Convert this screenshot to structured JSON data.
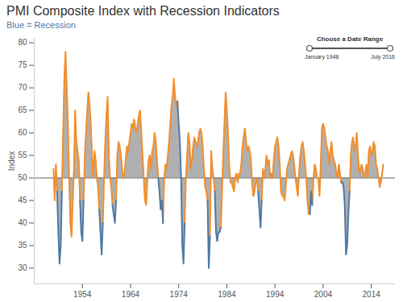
{
  "chart_data": {
    "type": "line",
    "title": "PMI Composite Index with Recession Indicators",
    "subtitle": "Blue = Recession",
    "ylabel": "Index",
    "date_range_control": {
      "title": "Choose a Date Range",
      "start": "January 1948",
      "end": "July 2016"
    },
    "baseline": 50,
    "xlim": [
      1944,
      2019
    ],
    "ylim": [
      26.5,
      81
    ],
    "xticks": [
      1954,
      1964,
      1974,
      1984,
      1994,
      2004,
      2014
    ],
    "yticks": [
      30,
      35,
      40,
      45,
      50,
      55,
      60,
      65,
      70,
      75,
      80
    ],
    "x": [
      1948,
      1948.25,
      1948.5,
      1948.75,
      1949,
      1949.25,
      1949.5,
      1949.75,
      1950,
      1950.25,
      1950.5,
      1950.75,
      1951,
      1951.25,
      1951.5,
      1951.75,
      1952,
      1952.25,
      1952.5,
      1952.75,
      1953,
      1953.25,
      1953.5,
      1953.75,
      1954,
      1954.25,
      1954.5,
      1954.75,
      1955,
      1955.25,
      1955.5,
      1955.75,
      1956,
      1956.25,
      1956.5,
      1956.75,
      1957,
      1957.25,
      1957.5,
      1957.75,
      1958,
      1958.25,
      1958.5,
      1958.75,
      1959,
      1959.25,
      1959.5,
      1959.75,
      1960,
      1960.25,
      1960.5,
      1960.75,
      1961,
      1961.25,
      1961.5,
      1961.75,
      1962,
      1962.25,
      1962.5,
      1962.75,
      1963,
      1963.25,
      1963.5,
      1963.75,
      1964,
      1964.25,
      1964.5,
      1964.75,
      1965,
      1965.25,
      1965.5,
      1965.75,
      1966,
      1966.25,
      1966.5,
      1966.75,
      1967,
      1967.25,
      1967.5,
      1967.75,
      1968,
      1968.25,
      1968.5,
      1968.75,
      1969,
      1969.25,
      1969.5,
      1969.75,
      1970,
      1970.25,
      1970.5,
      1970.75,
      1971,
      1971.25,
      1971.5,
      1971.75,
      1972,
      1972.25,
      1972.5,
      1972.75,
      1973,
      1973.25,
      1973.5,
      1973.75,
      1974,
      1974.25,
      1974.5,
      1974.75,
      1975,
      1975.25,
      1975.5,
      1975.75,
      1976,
      1976.25,
      1976.5,
      1976.75,
      1977,
      1977.25,
      1977.5,
      1977.75,
      1978,
      1978.25,
      1978.5,
      1978.75,
      1979,
      1979.25,
      1979.5,
      1979.75,
      1980,
      1980.25,
      1980.5,
      1980.75,
      1981,
      1981.25,
      1981.5,
      1981.75,
      1982,
      1982.25,
      1982.5,
      1982.75,
      1983,
      1983.25,
      1983.5,
      1983.75,
      1984,
      1984.25,
      1984.5,
      1984.75,
      1985,
      1985.25,
      1985.5,
      1985.75,
      1986,
      1986.25,
      1986.5,
      1986.75,
      1987,
      1987.25,
      1987.5,
      1987.75,
      1988,
      1988.25,
      1988.5,
      1988.75,
      1989,
      1989.25,
      1989.5,
      1989.75,
      1990,
      1990.25,
      1990.5,
      1990.75,
      1991,
      1991.25,
      1991.5,
      1991.75,
      1992,
      1992.25,
      1992.5,
      1992.75,
      1993,
      1993.25,
      1993.5,
      1993.75,
      1994,
      1994.25,
      1994.5,
      1994.75,
      1995,
      1995.25,
      1995.5,
      1995.75,
      1996,
      1996.25,
      1996.5,
      1996.75,
      1997,
      1997.25,
      1997.5,
      1997.75,
      1998,
      1998.25,
      1998.5,
      1998.75,
      1999,
      1999.25,
      1999.5,
      1999.75,
      2000,
      2000.25,
      2000.5,
      2000.75,
      2001,
      2001.25,
      2001.5,
      2001.75,
      2002,
      2002.25,
      2002.5,
      2002.75,
      2003,
      2003.25,
      2003.5,
      2003.75,
      2004,
      2004.25,
      2004.5,
      2004.75,
      2005,
      2005.25,
      2005.5,
      2005.75,
      2006,
      2006.25,
      2006.5,
      2006.75,
      2007,
      2007.25,
      2007.5,
      2007.75,
      2008,
      2008.25,
      2008.5,
      2008.75,
      2009,
      2009.25,
      2009.5,
      2009.75,
      2010,
      2010.25,
      2010.5,
      2010.75,
      2011,
      2011.25,
      2011.5,
      2011.75,
      2012,
      2012.25,
      2012.5,
      2012.75,
      2013,
      2013.25,
      2013.5,
      2013.75,
      2014,
      2014.25,
      2014.5,
      2014.75,
      2015,
      2015.25,
      2015.5,
      2015.75,
      2016,
      2016.25,
      2016.5
    ],
    "series": [
      {
        "color": "#f28e2b",
        "values": [
          52,
          45,
          53,
          47,
          null,
          null,
          null,
          47,
          60,
          72,
          78,
          70,
          62,
          50,
          40,
          37,
          45,
          52,
          65,
          58,
          56,
          54,
          45,
          null,
          null,
          45,
          55,
          60,
          65,
          69,
          66,
          62,
          55,
          50,
          56,
          54,
          50,
          48,
          43,
          null,
          null,
          40,
          50,
          58,
          64,
          68,
          55,
          50,
          48,
          44,
          null,
          null,
          45,
          55,
          58,
          57,
          55,
          52,
          50,
          51,
          54,
          57,
          56,
          58,
          60,
          62,
          61,
          63,
          61,
          60,
          62,
          64,
          65,
          60,
          55,
          50,
          45,
          44,
          50,
          54,
          55,
          52,
          56,
          57,
          60,
          58,
          54,
          50,
          null,
          null,
          null,
          40,
          50,
          53,
          52,
          55,
          58,
          62,
          66,
          68,
          72,
          68,
          66,
          67,
          null,
          null,
          null,
          null,
          null,
          40,
          50,
          55,
          60,
          58,
          52,
          54,
          57,
          59,
          58,
          57,
          58,
          60,
          61,
          60,
          57,
          52,
          48,
          47,
          45,
          null,
          37,
          56,
          52,
          50,
          47,
          null,
          null,
          null,
          null,
          39,
          47,
          55,
          62,
          69,
          65,
          60,
          53,
          49,
          49,
          48,
          47,
          50,
          51,
          49,
          51,
          51,
          53,
          57,
          59,
          61,
          58,
          56,
          57,
          56,
          54,
          49,
          46,
          47,
          49,
          50,
          47,
          null,
          null,
          45,
          52,
          50,
          52,
          55,
          53,
          54,
          50,
          51,
          50,
          54,
          57,
          58,
          59,
          57,
          53,
          47,
          46,
          46,
          45,
          48,
          52,
          53,
          54,
          55,
          56,
          55,
          53,
          50,
          48,
          46,
          51,
          55,
          57,
          58,
          56,
          53,
          50,
          45,
          42,
          42,
          null,
          44,
          50,
          53,
          52,
          50,
          50,
          46,
          53,
          61,
          62,
          61,
          59,
          57,
          56,
          53,
          56,
          58,
          55,
          54,
          53,
          51,
          50,
          53,
          51,
          49,
          null,
          null,
          null,
          null,
          null,
          null,
          47,
          55,
          58,
          59,
          56,
          57,
          60,
          55,
          51,
          52,
          53,
          52,
          50,
          51,
          53,
          50,
          56,
          57,
          55,
          56,
          58,
          57,
          53,
          52,
          50,
          48,
          49,
          51,
          53
        ]
      },
      {
        "name": "Recession",
        "color": "#4e79a7",
        "values": [
          null,
          null,
          null,
          47,
          38,
          31,
          35,
          47,
          null,
          null,
          null,
          null,
          null,
          null,
          null,
          null,
          null,
          null,
          null,
          null,
          null,
          null,
          45,
          38,
          36,
          45,
          null,
          null,
          null,
          null,
          null,
          null,
          null,
          null,
          null,
          null,
          null,
          null,
          43,
          38,
          33,
          40,
          null,
          null,
          null,
          null,
          null,
          null,
          null,
          44,
          42,
          40,
          45,
          null,
          null,
          null,
          null,
          null,
          null,
          null,
          null,
          null,
          null,
          null,
          null,
          null,
          null,
          null,
          null,
          null,
          null,
          null,
          null,
          null,
          null,
          null,
          null,
          null,
          null,
          null,
          null,
          null,
          null,
          null,
          null,
          null,
          null,
          50,
          47,
          43,
          45,
          40,
          null,
          null,
          null,
          null,
          null,
          null,
          null,
          null,
          null,
          null,
          null,
          67,
          62,
          58,
          50,
          35,
          31,
          40,
          null,
          null,
          null,
          null,
          null,
          null,
          null,
          null,
          null,
          null,
          null,
          null,
          null,
          null,
          null,
          null,
          null,
          null,
          45,
          30,
          37,
          null,
          null,
          null,
          47,
          38,
          36,
          38,
          38,
          39,
          null,
          null,
          null,
          null,
          null,
          null,
          null,
          null,
          null,
          null,
          null,
          null,
          null,
          null,
          null,
          null,
          null,
          null,
          null,
          null,
          null,
          null,
          null,
          null,
          null,
          null,
          null,
          null,
          null,
          null,
          47,
          43,
          39,
          45,
          null,
          null,
          null,
          null,
          null,
          null,
          null,
          null,
          null,
          null,
          null,
          null,
          null,
          null,
          null,
          null,
          null,
          null,
          null,
          null,
          null,
          null,
          null,
          null,
          null,
          null,
          null,
          null,
          null,
          null,
          null,
          null,
          null,
          null,
          null,
          null,
          null,
          null,
          null,
          42,
          47,
          44,
          null,
          null,
          null,
          null,
          null,
          null,
          null,
          null,
          null,
          null,
          null,
          null,
          null,
          null,
          null,
          null,
          null,
          null,
          null,
          null,
          null,
          null,
          null,
          49,
          49,
          48,
          44,
          33,
          35,
          42,
          47,
          null,
          null,
          null,
          null,
          null,
          null,
          null,
          null,
          null,
          null,
          null,
          null,
          null,
          null,
          null,
          null,
          null,
          null,
          null,
          null,
          null,
          null,
          null,
          null,
          null,
          null,
          null,
          null
        ]
      }
    ]
  }
}
